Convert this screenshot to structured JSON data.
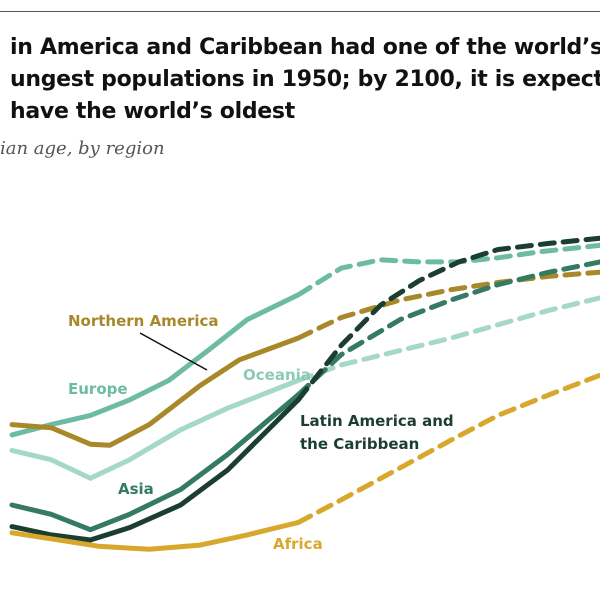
{
  "title_lines": [
    "in America and Caribbean had one of the world’s",
    "ungest populations in 1950; by 2100, it is expecte",
    "have the world’s oldest"
  ],
  "subtitle": "ian age, by region",
  "chart_data": {
    "type": "line",
    "ylabel": "",
    "xlabel": "",
    "xlim": [
      1950,
      2100
    ],
    "ylim": [
      17,
      50
    ],
    "projection_start": 2023,
    "grid": false,
    "legend": "direct labels on lines",
    "series": [
      {
        "name": "Europe",
        "color": "#6dbba4",
        "x": [
          1950,
          1960,
          1970,
          1980,
          1990,
          2000,
          2010,
          2023,
          2034,
          2044,
          2054,
          2064,
          2074,
          2085,
          2100
        ],
        "y": [
          29.7,
          30.7,
          31.6,
          33.1,
          35.0,
          37.9,
          40.9,
          43.3,
          45.9,
          46.7,
          46.5,
          46.5,
          46.9,
          47.5,
          48.1
        ]
      },
      {
        "name": "Northern America",
        "color": "#a8882a",
        "x": [
          1950,
          1960,
          1970,
          1975,
          1985,
          1998,
          2008,
          2023,
          2034,
          2049,
          2062,
          2074,
          2087,
          2100
        ],
        "y": [
          30.7,
          30.4,
          28.8,
          28.7,
          30.7,
          34.5,
          37.0,
          39.1,
          41.1,
          42.8,
          43.8,
          44.5,
          45.1,
          45.5
        ]
      },
      {
        "name": "Oceania",
        "color": "#a6d8c8",
        "x": [
          1950,
          1960,
          1970,
          1980,
          1993,
          2005,
          2023,
          2034,
          2049,
          2062,
          2074,
          2087,
          2100
        ],
        "y": [
          28.2,
          27.3,
          25.5,
          27.3,
          30.2,
          32.3,
          35.0,
          36.5,
          37.9,
          39.1,
          40.4,
          41.8,
          43.0
        ]
      },
      {
        "name": "Asia",
        "color": "#357a62",
        "x": [
          1950,
          1960,
          1970,
          1980,
          1993,
          2005,
          2023,
          2034,
          2049,
          2062,
          2074,
          2087,
          2100
        ],
        "y": [
          22.9,
          22.0,
          20.5,
          22.0,
          24.4,
          27.8,
          33.6,
          37.5,
          40.9,
          42.8,
          44.3,
          45.5,
          46.5
        ]
      },
      {
        "name": "Latin America and the Caribbean",
        "color": "#1c3e31",
        "x": [
          1950,
          1960,
          1970,
          1980,
          1993,
          2005,
          2023,
          2034,
          2044,
          2054,
          2064,
          2074,
          2087,
          2100
        ],
        "y": [
          20.8,
          20.0,
          19.5,
          20.7,
          22.9,
          26.3,
          33.1,
          38.4,
          42.3,
          44.7,
          46.5,
          47.7,
          48.3,
          48.8
        ]
      },
      {
        "name": "Africa",
        "color": "#d8a82d",
        "x": [
          1950,
          1962,
          1972,
          1985,
          1998,
          2010,
          2023,
          2034,
          2049,
          2062,
          2074,
          2087,
          2100
        ],
        "y": [
          20.2,
          19.5,
          18.9,
          18.6,
          19.0,
          20.0,
          21.2,
          23.4,
          26.5,
          29.2,
          31.6,
          33.6,
          35.5
        ]
      }
    ],
    "labels": {
      "europe": "Europe",
      "northern_america": "Northern America",
      "oceania": "Oceania",
      "asia": "Asia",
      "latam_line1": "Latin America and",
      "latam_line2": "the Caribbean",
      "africa": "Africa"
    }
  }
}
